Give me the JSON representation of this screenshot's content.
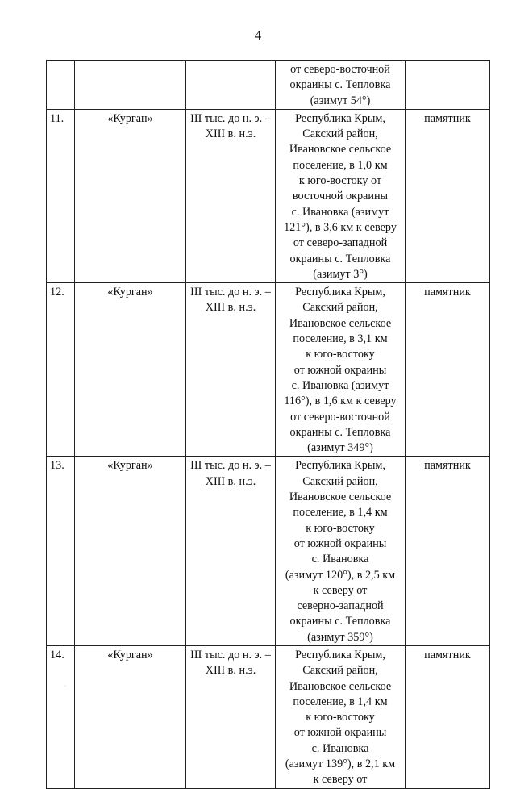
{
  "page_number": "4",
  "rows": [
    {
      "num": "",
      "name": "",
      "date": [],
      "location": [
        "от северо-восточной",
        "окраины с. Тепловка",
        "(азимут 54°)"
      ],
      "category": ""
    },
    {
      "num": "11.",
      "name": "«Курган»",
      "date": [
        "III тыс. до н. э. –",
        "XIII в. н.э."
      ],
      "location": [
        "Республика Крым,",
        "Сакский район,",
        "Ивановское сельское",
        "поселение, в 1,0 км",
        "к юго-востоку от",
        "восточной окраины",
        "с. Ивановка (азимут",
        "121°), в 3,6 км к северу",
        "от северо-западной",
        "окраины с. Тепловка",
        "(азимут 3°)"
      ],
      "category": "памятник"
    },
    {
      "num": "12.",
      "name": "«Курган»",
      "date": [
        "III тыс. до н. э. –",
        "XIII в. н.э."
      ],
      "location": [
        "Республика Крым,",
        "Сакский район,",
        "Ивановское сельское",
        "поселение, в 3,1 км",
        "к юго-востоку",
        "от южной окраины",
        "с. Ивановка (азимут",
        "116°), в 1,6 км к северу",
        "от северо-восточной",
        "окраины с. Тепловка",
        "(азимут 349°)"
      ],
      "category": "памятник"
    },
    {
      "num": "13.",
      "name": "«Курган»",
      "date": [
        "III тыс. до н. э. –",
        "XIII в. н.э."
      ],
      "location": [
        "Республика Крым,",
        "Сакский район,",
        "Ивановское сельское",
        "поселение, в 1,4 км",
        "к юго-востоку",
        "от южной окраины",
        "с. Ивановка",
        "(азимут 120°), в 2,5 км",
        "к северу от",
        "северно-западной",
        "окраины с. Тепловка",
        "(азимут 359°)"
      ],
      "category": "памятник"
    },
    {
      "num": "14.",
      "name": "«Курган»",
      "date": [
        "III тыс. до н. э. –",
        "XIII в. н.э."
      ],
      "location": [
        "Республика Крым,",
        "Сакский район,",
        "Ивановское сельское",
        "поселение, в 1,4 км",
        "к юго-востоку",
        "от южной окраины",
        "с. Ивановка",
        "(азимут 139°), в 2,1 км",
        "к северу от"
      ],
      "category": "памятник"
    }
  ]
}
